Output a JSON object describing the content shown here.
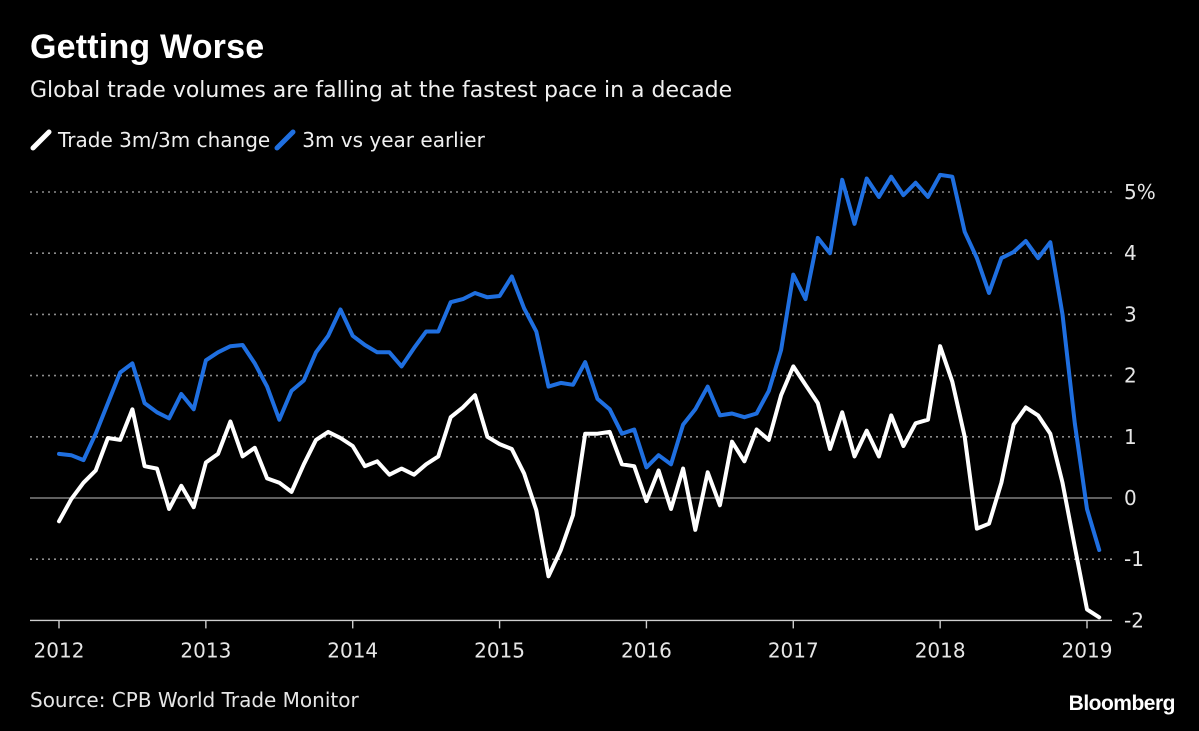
{
  "header": {
    "title": "Getting Worse",
    "subtitle": "Global trade volumes are falling at the fastest pace in a decade"
  },
  "legend": [
    {
      "label": "Trade 3m/3m change",
      "color": "#ffffff"
    },
    {
      "label": "3m vs year earlier",
      "color": "#1f6fe0"
    }
  ],
  "footer": {
    "source": "Source: CPB World Trade Monitor",
    "brand": "Bloomberg"
  },
  "chart_data": {
    "type": "line",
    "title": "Getting Worse",
    "subtitle": "Global trade volumes are falling at the fastest pace in a decade",
    "xlabel": "",
    "ylabel": "",
    "xlim": [
      2012.0,
      2019.083
    ],
    "ylim": [
      -2,
      5
    ],
    "grid": true,
    "legend_position": "top-left",
    "x_ticks": [
      {
        "value": 2012,
        "label": "2012"
      },
      {
        "value": 2013,
        "label": "2013"
      },
      {
        "value": 2014,
        "label": "2014"
      },
      {
        "value": 2015,
        "label": "2015"
      },
      {
        "value": 2016,
        "label": "2016"
      },
      {
        "value": 2017,
        "label": "2017"
      },
      {
        "value": 2018,
        "label": "2018"
      },
      {
        "value": 2019,
        "label": "2019"
      }
    ],
    "y_ticks": [
      {
        "value": 5,
        "label": "5%"
      },
      {
        "value": 4,
        "label": "4"
      },
      {
        "value": 3,
        "label": "3"
      },
      {
        "value": 2,
        "label": "2"
      },
      {
        "value": 1,
        "label": "1"
      },
      {
        "value": 0,
        "label": "0"
      },
      {
        "value": -1,
        "label": "-1"
      },
      {
        "value": -2,
        "label": "-2"
      }
    ],
    "series": [
      {
        "name": "Trade 3m/3m change",
        "color": "#ffffff",
        "x": [
          2012.0,
          2012.083,
          2012.167,
          2012.25,
          2012.333,
          2012.417,
          2012.5,
          2012.583,
          2012.667,
          2012.75,
          2012.833,
          2012.917,
          2013.0,
          2013.083,
          2013.167,
          2013.25,
          2013.333,
          2013.417,
          2013.5,
          2013.583,
          2013.667,
          2013.75,
          2013.833,
          2013.917,
          2014.0,
          2014.083,
          2014.167,
          2014.25,
          2014.333,
          2014.417,
          2014.5,
          2014.583,
          2014.667,
          2014.75,
          2014.833,
          2014.917,
          2015.0,
          2015.083,
          2015.167,
          2015.25,
          2015.333,
          2015.417,
          2015.5,
          2015.583,
          2015.667,
          2015.75,
          2015.833,
          2015.917,
          2016.0,
          2016.083,
          2016.167,
          2016.25,
          2016.333,
          2016.417,
          2016.5,
          2016.583,
          2016.667,
          2016.75,
          2016.833,
          2016.917,
          2017.0,
          2017.083,
          2017.167,
          2017.25,
          2017.333,
          2017.417,
          2017.5,
          2017.583,
          2017.667,
          2017.75,
          2017.833,
          2017.917,
          2018.0,
          2018.083,
          2018.167,
          2018.25,
          2018.333,
          2018.417,
          2018.5,
          2018.583,
          2018.667,
          2018.75,
          2018.833,
          2018.917,
          2019.0,
          2019.083
        ],
        "values": [
          -0.38,
          -0.02,
          0.25,
          0.45,
          0.98,
          0.95,
          1.45,
          0.52,
          0.48,
          -0.18,
          0.2,
          -0.15,
          0.58,
          0.72,
          1.25,
          0.68,
          0.82,
          0.32,
          0.25,
          0.1,
          0.55,
          0.95,
          1.08,
          0.98,
          0.85,
          0.52,
          0.6,
          0.38,
          0.48,
          0.38,
          0.55,
          0.68,
          1.32,
          1.48,
          1.68,
          1.0,
          0.88,
          0.8,
          0.4,
          -0.2,
          -1.28,
          -0.85,
          -0.28,
          1.05,
          1.05,
          1.08,
          0.55,
          0.52,
          -0.05,
          0.45,
          -0.18,
          0.48,
          -0.52,
          0.42,
          -0.12,
          0.92,
          0.6,
          1.12,
          0.95,
          1.68,
          2.15,
          1.85,
          1.55,
          0.8,
          1.4,
          0.68,
          1.1,
          0.68,
          1.35,
          0.85,
          1.22,
          1.28,
          2.48,
          1.9,
          1.0,
          -0.5,
          -0.42,
          0.25,
          1.2,
          1.48,
          1.35,
          1.05,
          0.25,
          -0.8,
          -1.82,
          -1.95
        ]
      },
      {
        "name": "3m vs year earlier",
        "color": "#1f6fe0",
        "x": [
          2012.0,
          2012.083,
          2012.167,
          2012.25,
          2012.333,
          2012.417,
          2012.5,
          2012.583,
          2012.667,
          2012.75,
          2012.833,
          2012.917,
          2013.0,
          2013.083,
          2013.167,
          2013.25,
          2013.333,
          2013.417,
          2013.5,
          2013.583,
          2013.667,
          2013.75,
          2013.833,
          2013.917,
          2014.0,
          2014.083,
          2014.167,
          2014.25,
          2014.333,
          2014.417,
          2014.5,
          2014.583,
          2014.667,
          2014.75,
          2014.833,
          2014.917,
          2015.0,
          2015.083,
          2015.167,
          2015.25,
          2015.333,
          2015.417,
          2015.5,
          2015.583,
          2015.667,
          2015.75,
          2015.833,
          2015.917,
          2016.0,
          2016.083,
          2016.167,
          2016.25,
          2016.333,
          2016.417,
          2016.5,
          2016.583,
          2016.667,
          2016.75,
          2016.833,
          2016.917,
          2017.0,
          2017.083,
          2017.167,
          2017.25,
          2017.333,
          2017.417,
          2017.5,
          2017.583,
          2017.667,
          2017.75,
          2017.833,
          2017.917,
          2018.0,
          2018.083,
          2018.167,
          2018.25,
          2018.333,
          2018.417,
          2018.5,
          2018.583,
          2018.667,
          2018.75,
          2018.833,
          2018.917,
          2019.0,
          2019.083
        ],
        "values": [
          0.72,
          0.7,
          0.62,
          1.05,
          1.55,
          2.05,
          2.2,
          1.55,
          1.4,
          1.3,
          1.7,
          1.45,
          2.25,
          2.38,
          2.48,
          2.5,
          2.2,
          1.82,
          1.28,
          1.75,
          1.92,
          2.38,
          2.65,
          3.08,
          2.65,
          2.5,
          2.38,
          2.38,
          2.15,
          2.45,
          2.72,
          2.72,
          3.2,
          3.25,
          3.35,
          3.28,
          3.3,
          3.62,
          3.1,
          2.72,
          1.82,
          1.88,
          1.85,
          2.22,
          1.62,
          1.45,
          1.05,
          1.12,
          0.5,
          0.7,
          0.55,
          1.2,
          1.45,
          1.82,
          1.35,
          1.38,
          1.32,
          1.38,
          1.75,
          2.42,
          3.65,
          3.25,
          4.25,
          4.0,
          5.2,
          4.48,
          5.22,
          4.92,
          5.25,
          4.95,
          5.15,
          4.92,
          5.28,
          5.25,
          4.35,
          3.92,
          3.35,
          3.92,
          4.02,
          4.2,
          3.92,
          4.18,
          3.0,
          1.22,
          -0.18,
          -0.85
        ]
      }
    ]
  }
}
